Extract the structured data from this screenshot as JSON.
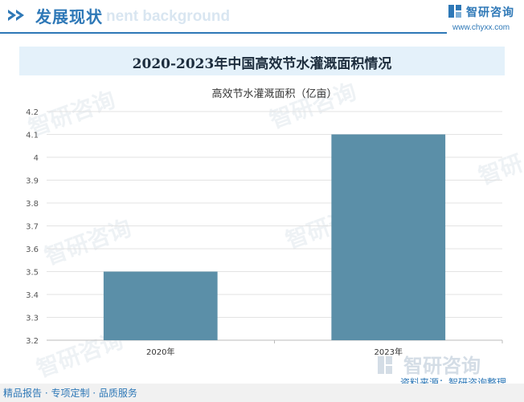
{
  "header": {
    "section_title": "发展现状",
    "ghost_text": "nent background"
  },
  "brand": {
    "name": "智研咨询",
    "url": "www.chyxx.com",
    "logo_icon": "zhiyan-logo-icon"
  },
  "chart_title": "2020-2023年中国高效节水灌溉面积情况",
  "chart_data": {
    "type": "bar",
    "categories": [
      "2020年",
      "2023年"
    ],
    "series": [
      {
        "name": "高效节水灌溉面积（亿亩）",
        "values": [
          3.5,
          4.1
        ]
      }
    ],
    "ylim": [
      3.2,
      4.2
    ],
    "yticks": [
      "4.2",
      "4.1",
      "4",
      "3.9",
      "3.8",
      "3.7",
      "3.6",
      "3.5",
      "3.4",
      "3.3",
      "3.2"
    ],
    "grid": true,
    "bar_color": "#5b8fa8"
  },
  "footer": {
    "tagline": "精品报告 · 专项定制 · 品质服务",
    "source": "资料来源：智研咨询整理",
    "watermark_text": "智研咨询"
  },
  "colors": {
    "accent": "#2e78b7",
    "bar": "#5b8fa8",
    "title_band": "#e4f1fa"
  }
}
